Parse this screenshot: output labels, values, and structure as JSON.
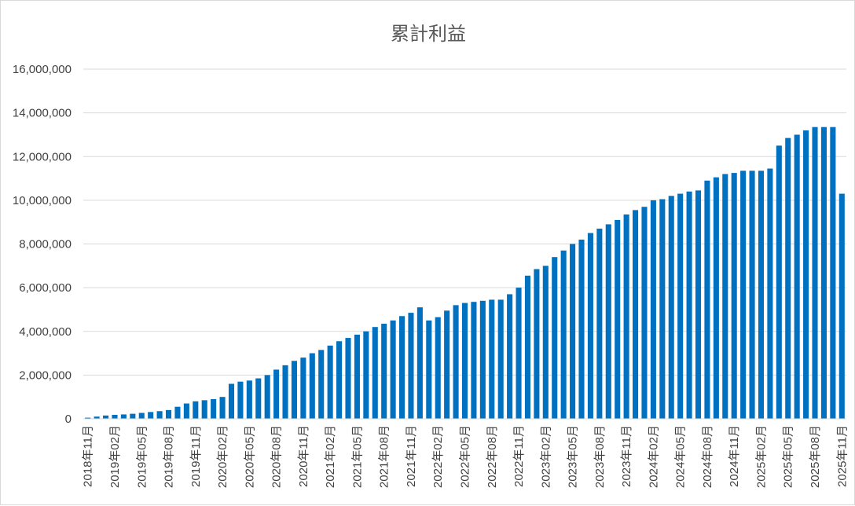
{
  "chart_data": {
    "type": "bar",
    "title": "累計利益",
    "xlabel": "",
    "ylabel": "",
    "ylim": [
      0,
      16000000
    ],
    "y_ticks": [
      0,
      2000000,
      4000000,
      6000000,
      8000000,
      10000000,
      12000000,
      14000000,
      16000000
    ],
    "y_tick_labels": [
      "0",
      "2,000,000",
      "4,000,000",
      "6,000,000",
      "8,000,000",
      "10,000,000",
      "12,000,000",
      "14,000,000",
      "16,000,000"
    ],
    "grid": true,
    "legend": "none",
    "bar_color": "#0070c0",
    "categories": [
      "2018年11月",
      "2018年12月",
      "2019年01月",
      "2019年02月",
      "2019年03月",
      "2019年04月",
      "2019年05月",
      "2019年06月",
      "2019年07月",
      "2019年08月",
      "2019年09月",
      "2019年10月",
      "2019年11月",
      "2019年12月",
      "2020年01月",
      "2020年02月",
      "2020年03月",
      "2020年04月",
      "2020年05月",
      "2020年06月",
      "2020年07月",
      "2020年08月",
      "2020年09月",
      "2020年10月",
      "2020年11月",
      "2020年12月",
      "2021年01月",
      "2021年02月",
      "2021年03月",
      "2021年04月",
      "2021年05月",
      "2021年06月",
      "2021年07月",
      "2021年08月",
      "2021年09月",
      "2021年10月",
      "2021年11月",
      "2021年12月",
      "2022年01月",
      "2022年02月",
      "2022年03月",
      "2022年04月",
      "2022年05月",
      "2022年06月",
      "2022年07月",
      "2022年08月",
      "2022年09月",
      "2022年10月",
      "2022年11月",
      "2022年12月",
      "2023年01月",
      "2023年02月",
      "2023年03月",
      "2023年04月",
      "2023年05月",
      "2023年06月",
      "2023年07月",
      "2023年08月",
      "2023年09月",
      "2023年10月",
      "2023年11月",
      "2023年12月",
      "2024年01月",
      "2024年02月",
      "2024年03月",
      "2024年04月",
      "2024年05月",
      "2024年06月",
      "2024年07月",
      "2024年08月",
      "2024年09月",
      "2024年10月",
      "2024年11月",
      "2024年12月",
      "2025年01月",
      "2025年02月",
      "2025年03月",
      "2025年04月",
      "2025年05月",
      "2025年06月",
      "2025年07月",
      "2025年08月",
      "2025年09月",
      "2025年10月",
      "2025年11月"
    ],
    "x_tick_labels": [
      "2018年11月",
      "2019年02月",
      "2019年05月",
      "2019年08月",
      "2019年11月",
      "2020年02月",
      "2020年05月",
      "2020年08月",
      "2020年11月",
      "2021年02月",
      "2021年05月",
      "2021年08月",
      "2021年11月",
      "2022年02月",
      "2022年05月",
      "2022年08月",
      "2022年11月",
      "2023年02月",
      "2023年05月",
      "2023年08月",
      "2023年11月",
      "2024年02月",
      "2024年05月",
      "2024年08月",
      "2024年11月",
      "2025年02月",
      "2025年05月",
      "2025年08月",
      "2025年11月"
    ],
    "values": [
      50000,
      100000,
      150000,
      180000,
      200000,
      230000,
      270000,
      310000,
      350000,
      400000,
      550000,
      700000,
      800000,
      850000,
      900000,
      1000000,
      1600000,
      1700000,
      1750000,
      1850000,
      2000000,
      2250000,
      2450000,
      2650000,
      2800000,
      3000000,
      3150000,
      3350000,
      3550000,
      3700000,
      3850000,
      4000000,
      4200000,
      4350000,
      4500000,
      4700000,
      4850000,
      5100000,
      4500000,
      4650000,
      4950000,
      5200000,
      5300000,
      5350000,
      5400000,
      5450000,
      5450000,
      5700000,
      6000000,
      6550000,
      6850000,
      7000000,
      7400000,
      7700000,
      8000000,
      8200000,
      8500000,
      8700000,
      8900000,
      9100000,
      9350000,
      9550000,
      9700000,
      10000000,
      10050000,
      10200000,
      10300000,
      10400000,
      10450000,
      10900000,
      11050000,
      11200000,
      11250000,
      11350000,
      11350000,
      11350000,
      11450000,
      12500000,
      12850000,
      13000000,
      13200000,
      13350000,
      13350000,
      13350000,
      10300000
    ]
  }
}
